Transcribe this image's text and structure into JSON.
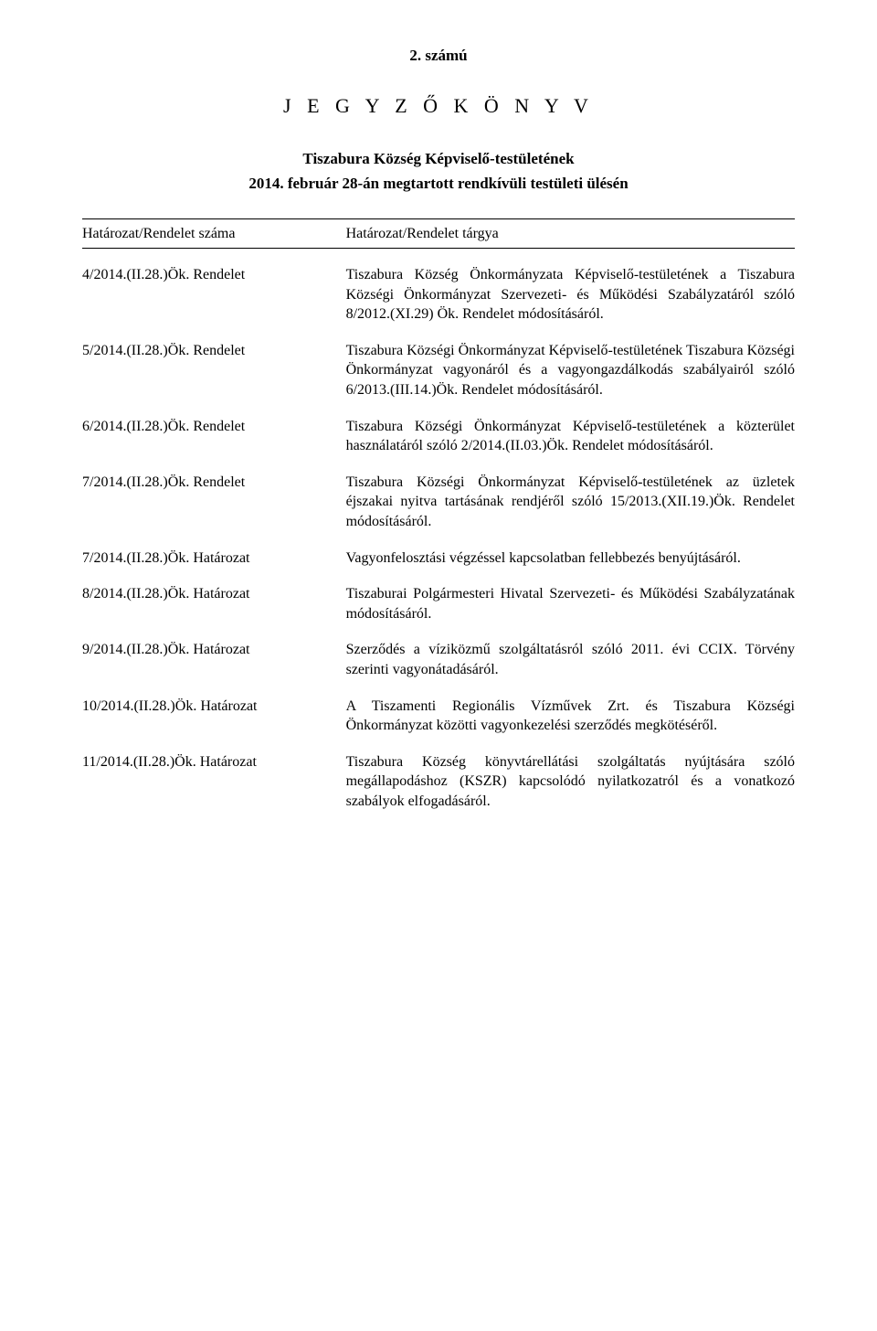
{
  "doc_number": "2. számú",
  "doc_title": "J E G Y Z Ő K Ö N Y V",
  "doc_subtitle_line1": "Tiszabura Község Képviselő-testületének",
  "doc_subtitle_line2": "2014. február 28-án megtartott rendkívüli testületi ülésén",
  "header": {
    "left": "Határozat/Rendelet száma",
    "right": "Határozat/Rendelet tárgya"
  },
  "entries": [
    {
      "left": "4/2014.(II.28.)Ök. Rendelet",
      "right": "Tiszabura Község Önkormányzata Képviselő-testületének a Tiszabura Községi Önkormányzat Szervezeti- és Működési Szabályzatáról szóló 8/2012.(XI.29) Ök. Rendelet módosításáról."
    },
    {
      "left": "5/2014.(II.28.)Ök. Rendelet",
      "right": "Tiszabura Községi Önkormányzat Képviselő-testületének Tiszabura Községi Önkormányzat vagyonáról és a vagyongazdálkodás szabályairól szóló 6/2013.(III.14.)Ök. Rendelet módosításáról."
    },
    {
      "left": "6/2014.(II.28.)Ök. Rendelet",
      "right": "Tiszabura Községi Önkormányzat Képviselő-testületének a közterület használatáról szóló 2/2014.(II.03.)Ök. Rendelet módosításáról."
    },
    {
      "left": "7/2014.(II.28.)Ök. Rendelet",
      "right": "Tiszabura Községi Önkormányzat Képviselő-testületének az üzletek éjszakai nyitva tartásának rendjéről szóló 15/2013.(XII.19.)Ök. Rendelet módosításáról."
    },
    {
      "left": "7/2014.(II.28.)Ök. Határozat",
      "right": "Vagyonfelosztási végzéssel kapcsolatban fellebbezés benyújtásáról."
    },
    {
      "left": "8/2014.(II.28.)Ök. Határozat",
      "right": "Tiszaburai Polgármesteri Hivatal Szervezeti- és Működési Szabályzatának módosításáról."
    },
    {
      "left": "9/2014.(II.28.)Ök. Határozat",
      "right": "Szerződés a víziközmű szolgáltatásról szóló 2011. évi CCIX. Törvény szerinti vagyonátadásáról."
    },
    {
      "left": "10/2014.(II.28.)Ök. Határozat",
      "right": "A Tiszamenti Regionális Vízművek Zrt. és Tiszabura Községi Önkormányzat közötti vagyonkezelési szerződés megkötéséről."
    },
    {
      "left": "11/2014.(II.28.)Ök. Határozat",
      "right": "Tiszabura Község könyvtárellátási szolgáltatás nyújtására szóló megállapodáshoz (KSZR) kapcsolódó nyilatkozatról és a vonatkozó szabályok elfogadásáról."
    }
  ]
}
